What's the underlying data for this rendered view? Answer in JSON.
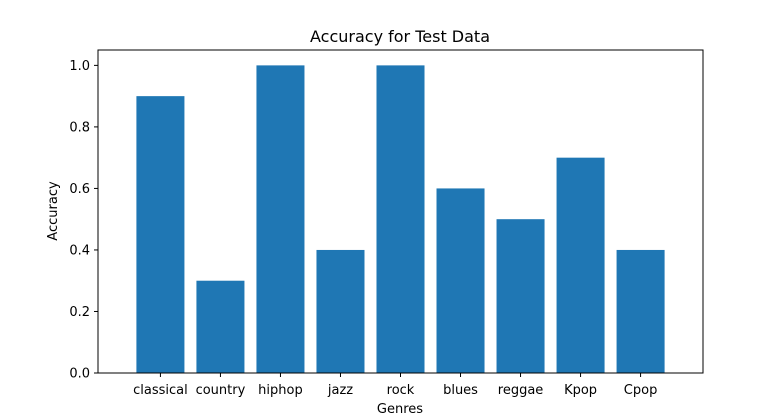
{
  "chart_data": {
    "type": "bar",
    "title": "Accuracy for Test Data",
    "xlabel": "Genres",
    "ylabel": "Accuracy",
    "categories": [
      "classical",
      "country",
      "hiphop",
      "jazz",
      "rock",
      "blues",
      "reggae",
      "Kpop",
      "Cpop"
    ],
    "values": [
      0.9,
      0.3,
      1.0,
      0.4,
      1.0,
      0.6,
      0.5,
      0.7,
      0.4
    ],
    "ylim": [
      0,
      1.05
    ],
    "yticks": [
      "0.0",
      "0.2",
      "0.4",
      "0.6",
      "0.8",
      "1.0"
    ],
    "grid": false,
    "bar_color": "#1f77b4"
  }
}
